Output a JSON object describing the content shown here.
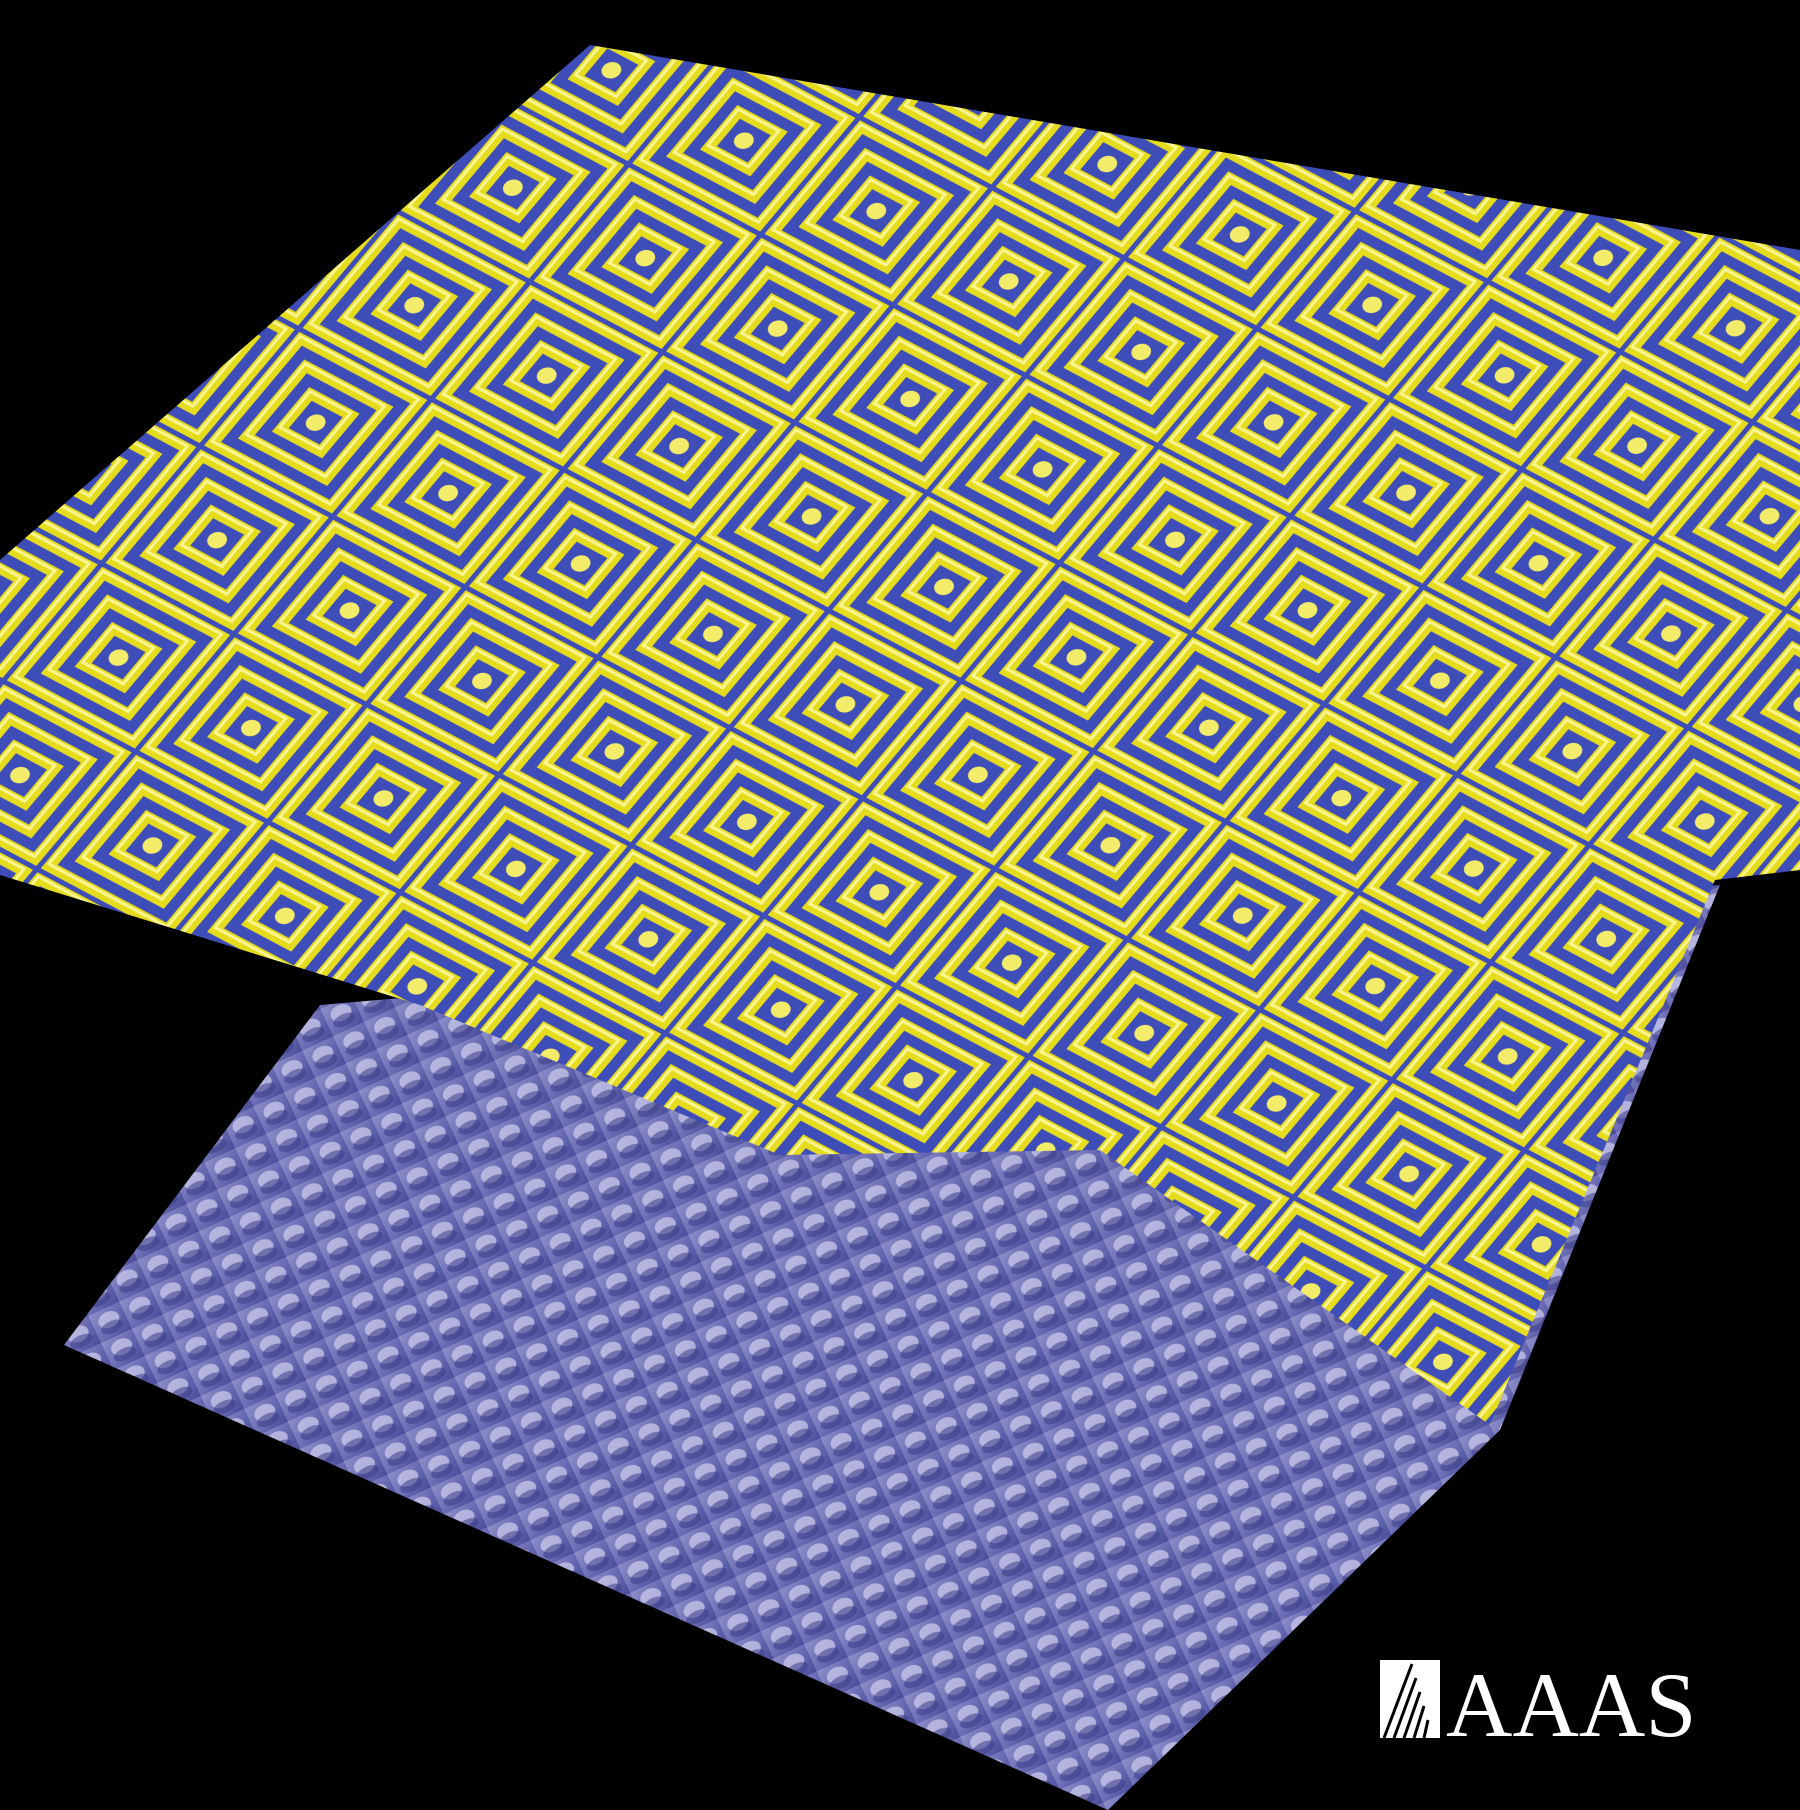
{
  "logo": {
    "text": "AAAS"
  }
}
